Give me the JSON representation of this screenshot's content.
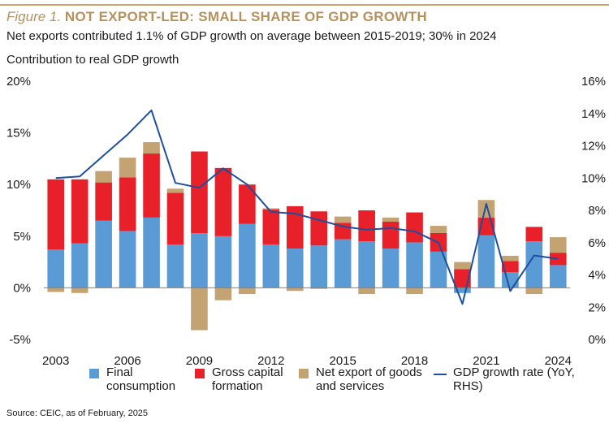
{
  "header": {
    "figure_label": "Figure 1.",
    "title": "NOT EXPORT-LED: SMALL SHARE OF GDP GROWTH",
    "subtitle": "Net exports contributed 1.1% of GDP growth on average between 2015-2019; 30% in 2024",
    "axis_title": "Contribution to real GDP growth"
  },
  "legend": {
    "final": "Final consumption",
    "gcf": "Gross capital formation",
    "netx": "Net export of goods and services",
    "gdp": "GDP growth rate (YoY, RHS)"
  },
  "source": "Source: CEIC, as of February, 2025",
  "colors": {
    "final": "#5b9bd5",
    "gcf": "#e8202a",
    "netx": "#c4a372",
    "gdp": "#1f4e9a",
    "accent": "#b5925d"
  },
  "chart_data": {
    "type": "bar",
    "stacked": true,
    "categories": [
      "2003",
      "2004",
      "2005",
      "2006",
      "2007",
      "2008",
      "2009",
      "2010",
      "2011",
      "2012",
      "2013",
      "2014",
      "2015",
      "2016",
      "2017",
      "2018",
      "2019",
      "2020",
      "2021",
      "2022",
      "2023",
      "2024"
    ],
    "x_tick_labels": [
      "2003",
      "2006",
      "2009",
      "2012",
      "2015",
      "2018",
      "2021",
      "2024"
    ],
    "series": [
      {
        "name": "Final consumption",
        "values": [
          3.7,
          4.3,
          6.5,
          5.5,
          6.8,
          4.2,
          5.3,
          5.0,
          6.2,
          4.2,
          3.8,
          4.1,
          4.7,
          4.5,
          3.8,
          4.4,
          3.5,
          -0.5,
          5.1,
          1.5,
          4.5,
          2.2
        ]
      },
      {
        "name": "Gross capital formation",
        "values": [
          6.8,
          6.2,
          3.7,
          5.2,
          6.2,
          5.0,
          7.9,
          6.6,
          3.8,
          3.4,
          4.1,
          3.3,
          1.6,
          3.0,
          2.6,
          2.9,
          1.8,
          1.8,
          1.7,
          1.1,
          1.4,
          1.2
        ]
      },
      {
        "name": "Net export of goods and services",
        "values": [
          -0.4,
          -0.5,
          1.1,
          1.9,
          1.1,
          0.4,
          -4.1,
          -1.2,
          -0.6,
          0.1,
          -0.3,
          -0.1,
          0.6,
          -0.6,
          0.4,
          -0.6,
          0.7,
          0.7,
          1.7,
          0.5,
          -0.6,
          1.5
        ]
      }
    ],
    "line_series": {
      "name": "GDP growth rate (YoY, RHS)",
      "axis": "right",
      "values": [
        10.0,
        10.1,
        11.4,
        12.7,
        14.2,
        9.7,
        9.4,
        10.6,
        9.6,
        7.9,
        7.8,
        7.4,
        7.0,
        6.8,
        6.9,
        6.7,
        6.0,
        2.2,
        8.4,
        3.0,
        5.2,
        5.0
      ]
    },
    "y_left": {
      "min": -5,
      "max": 20,
      "ticks": [
        "-5%",
        "0%",
        "5%",
        "10%",
        "15%",
        "20%"
      ]
    },
    "y_right": {
      "min": 0,
      "max": 16,
      "ticks": [
        "0%",
        "2%",
        "4%",
        "6%",
        "8%",
        "10%",
        "12%",
        "14%",
        "16%"
      ]
    },
    "ylabel": "Contribution to real GDP growth",
    "grid": false,
    "legend_position": "bottom"
  }
}
